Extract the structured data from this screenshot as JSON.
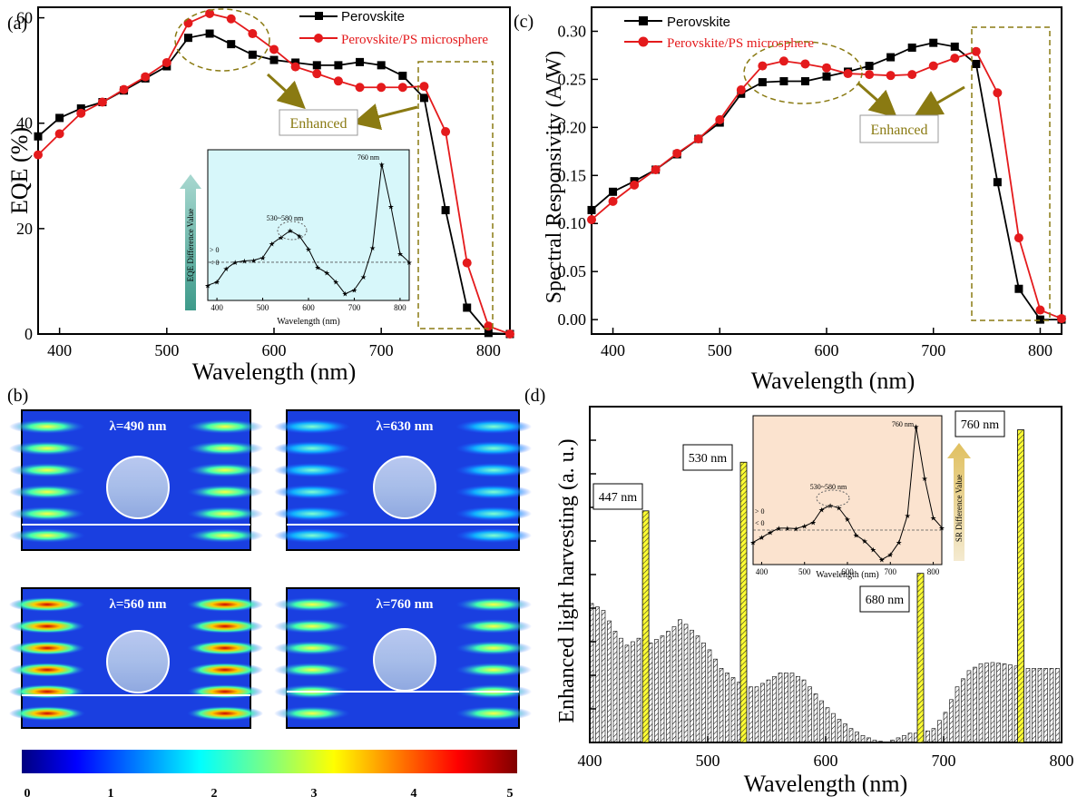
{
  "colors": {
    "black": "#000000",
    "red": "#e41a1c",
    "olive": "#8a7a12",
    "yellow": "#ffff33"
  },
  "chart_data": [
    {
      "panel": "(a)",
      "type": "line",
      "xlabel": "Wavelength (nm)",
      "ylabel": "EQE (%)",
      "xlim": [
        380,
        820
      ],
      "ylim": [
        0,
        62
      ],
      "xticks": [
        "400",
        "500",
        "600",
        "700",
        "800"
      ],
      "yticks": [
        "0",
        "20",
        "40",
        "60"
      ],
      "legend_position": "top-right",
      "x": [
        380,
        400,
        420,
        440,
        460,
        480,
        500,
        520,
        540,
        560,
        580,
        600,
        620,
        640,
        660,
        680,
        700,
        720,
        740,
        760,
        780,
        800,
        820
      ],
      "series": [
        {
          "name": "Perovskite",
          "color": "#000000",
          "marker": "square",
          "values": [
            37.5,
            41,
            42.8,
            44,
            46.2,
            48.5,
            50.8,
            56.2,
            57,
            55,
            53,
            52,
            51.5,
            51,
            51,
            51.6,
            51,
            49,
            44.8,
            23.5,
            5,
            0.2,
            0
          ]
        },
        {
          "name": "Perovskite/PS microsphere",
          "color": "#e41a1c",
          "marker": "circle",
          "values": [
            34,
            38,
            41.9,
            44,
            46.4,
            48.8,
            51.5,
            59,
            60.8,
            59.8,
            57,
            54,
            50.7,
            49.4,
            48,
            46.8,
            46.8,
            46.8,
            47,
            38.4,
            13.5,
            1.5,
            0
          ]
        }
      ],
      "annotation": "Enhanced",
      "inset": {
        "xlabel": "Wavelength (nm)",
        "ylabel": "EQE Difference Value",
        "xticks": [
          "400",
          "500",
          "600",
          "700",
          "800"
        ],
        "labels": {
          "peak1": "530~580 nm",
          "peak2": "760 nm",
          "above": "> 0",
          "below": "< 0"
        },
        "x": [
          380,
          400,
          420,
          440,
          460,
          480,
          500,
          520,
          540,
          560,
          580,
          600,
          620,
          640,
          660,
          680,
          700,
          720,
          740,
          760,
          780,
          800,
          820
        ],
        "values": [
          -3.5,
          -3,
          -1.0,
          0,
          0.2,
          0.3,
          0.7,
          2.8,
          3.8,
          4.8,
          4.0,
          2.0,
          -0.8,
          -1.6,
          -3.0,
          -4.8,
          -4.2,
          -2.2,
          2.2,
          14.9,
          8.5,
          1.3,
          0
        ]
      }
    },
    {
      "panel": "(c)",
      "type": "line",
      "xlabel": "Wavelength (nm)",
      "ylabel": "Spectral Responsivity (A/W)",
      "xlim": [
        380,
        820
      ],
      "ylim": [
        -0.015,
        0.325
      ],
      "xticks": [
        "400",
        "500",
        "600",
        "700",
        "800"
      ],
      "yticks": [
        "0.00",
        "0.05",
        "0.10",
        "0.15",
        "0.20",
        "0.25",
        "0.30"
      ],
      "legend_position": "top-left",
      "x": [
        380,
        400,
        420,
        440,
        460,
        480,
        500,
        520,
        540,
        560,
        580,
        600,
        620,
        640,
        660,
        680,
        700,
        720,
        740,
        760,
        780,
        800,
        820
      ],
      "series": [
        {
          "name": "Perovskite",
          "color": "#000000",
          "marker": "square",
          "values": [
            0.114,
            0.133,
            0.144,
            0.156,
            0.172,
            0.188,
            0.205,
            0.235,
            0.247,
            0.248,
            0.248,
            0.253,
            0.258,
            0.264,
            0.273,
            0.283,
            0.288,
            0.284,
            0.266,
            0.143,
            0.032,
            0,
            0
          ]
        },
        {
          "name": "Perovskite/PS microsphere",
          "color": "#e41a1c",
          "marker": "circle",
          "values": [
            0.104,
            0.123,
            0.14,
            0.156,
            0.173,
            0.188,
            0.208,
            0.239,
            0.264,
            0.269,
            0.266,
            0.262,
            0.256,
            0.255,
            0.254,
            0.255,
            0.264,
            0.272,
            0.279,
            0.236,
            0.085,
            0.01,
            0.001
          ]
        }
      ],
      "annotation": "Enhanced"
    },
    {
      "panel": "(d)",
      "type": "bar",
      "xlabel": "Wavelength (nm)",
      "ylabel": "Enhanced light harvesting (a. u.)",
      "xlim": [
        400,
        800
      ],
      "xticks": [
        "400",
        "500",
        "600",
        "700",
        "800"
      ],
      "highlights": [
        {
          "label": "447 nm",
          "x": 447,
          "value": 1.0
        },
        {
          "label": "530 nm",
          "x": 530,
          "value": 1.21
        },
        {
          "label": "680 nm",
          "x": 680,
          "value": 0.73
        },
        {
          "label": "760 nm",
          "x": 765,
          "value": 1.35
        }
      ],
      "profile": [
        [
          400,
          0.6
        ],
        [
          410,
          0.57
        ],
        [
          420,
          0.48
        ],
        [
          430,
          0.42
        ],
        [
          440,
          0.45
        ],
        [
          450,
          0.43
        ],
        [
          460,
          0.46
        ],
        [
          470,
          0.5
        ],
        [
          475,
          0.53
        ],
        [
          480,
          0.51
        ],
        [
          490,
          0.46
        ],
        [
          500,
          0.4
        ],
        [
          510,
          0.32
        ],
        [
          520,
          0.28
        ],
        [
          530,
          0.24
        ],
        [
          540,
          0.24
        ],
        [
          550,
          0.27
        ],
        [
          560,
          0.3
        ],
        [
          570,
          0.3
        ],
        [
          580,
          0.27
        ],
        [
          590,
          0.21
        ],
        [
          600,
          0.15
        ],
        [
          610,
          0.1
        ],
        [
          620,
          0.06
        ],
        [
          630,
          0.03
        ],
        [
          640,
          0.01
        ],
        [
          650,
          0.0
        ],
        [
          660,
          0.02
        ],
        [
          670,
          0.04
        ],
        [
          680,
          0.04
        ],
        [
          690,
          0.06
        ],
        [
          700,
          0.13
        ],
        [
          710,
          0.24
        ],
        [
          720,
          0.31
        ],
        [
          730,
          0.34
        ],
        [
          740,
          0.345
        ],
        [
          750,
          0.34
        ],
        [
          760,
          0.33
        ],
        [
          770,
          0.32
        ],
        [
          780,
          0.32
        ],
        [
          790,
          0.32
        ],
        [
          795,
          0.32
        ]
      ],
      "inset": {
        "xlabel": "Wavelength (nm)",
        "ylabel": "SR Difference Value",
        "xticks": [
          "400",
          "500",
          "600",
          "700",
          "800"
        ],
        "labels": {
          "peak1": "530~580 nm",
          "peak2": "760 nm",
          "above": "> 0",
          "below": "< 0"
        },
        "x": [
          380,
          400,
          420,
          440,
          460,
          480,
          500,
          520,
          540,
          560,
          580,
          600,
          620,
          640,
          660,
          680,
          700,
          720,
          740,
          760,
          780,
          800,
          820
        ],
        "values": [
          -2.5,
          -1.5,
          -0.5,
          0.4,
          0.4,
          0.3,
          0.8,
          1.6,
          4.2,
          5.0,
          4.5,
          2.2,
          -1.0,
          -2.2,
          -4.0,
          -6.0,
          -5.0,
          -2.5,
          3.0,
          21,
          10.5,
          2.5,
          0.5
        ]
      }
    }
  ],
  "panels": {
    "a": {
      "label": "(a)"
    },
    "b": {
      "label": "(b)",
      "fields": [
        "λ=490 nm",
        "λ=630 nm",
        "λ=560 nm",
        "λ=760 nm"
      ],
      "colorbar_ticks": [
        "0",
        "1",
        "2",
        "3",
        "4",
        "5"
      ]
    },
    "c": {
      "label": "(c)"
    },
    "d": {
      "label": "(d)"
    }
  }
}
